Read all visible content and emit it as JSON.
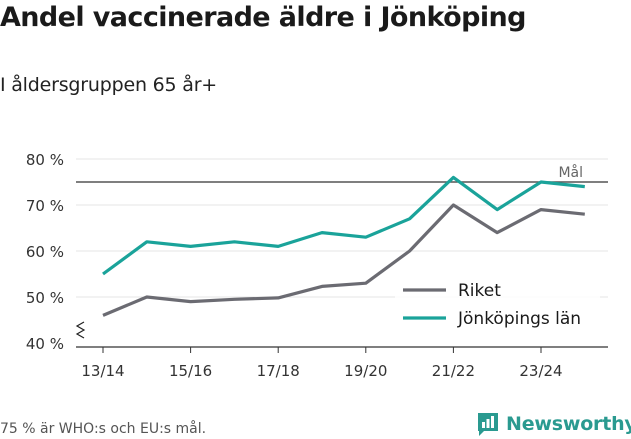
{
  "header": {
    "title": "Andel vaccinerade äldre i Jönköping",
    "subtitle": "I åldersgruppen 65 år+"
  },
  "footer": {
    "note": "75 % är WHO:s och EU:s mål.",
    "brand": "Newsworthy",
    "brand_icon": "newsworthy-logo-icon"
  },
  "chart_data": {
    "type": "line",
    "title": "Andel vaccinerade äldre i Jönköping",
    "subtitle": "I åldersgruppen 65 år+",
    "x": [
      "13/14",
      "14/15",
      "15/16",
      "16/17",
      "17/18",
      "18/19",
      "19/20",
      "20/21",
      "21/22",
      "22/23",
      "23/24",
      "24/25"
    ],
    "tick_labels": [
      "13/14",
      "15/16",
      "17/18",
      "19/20",
      "21/22",
      "23/24"
    ],
    "y_ticks": [
      "40 %",
      "50 %",
      "60 %",
      "70 %",
      "80 %"
    ],
    "ylim": [
      40,
      80
    ],
    "ylabel": "",
    "xlabel": "",
    "grid": true,
    "axis_break": true,
    "series": [
      {
        "name": "Riket",
        "color": "#6b6b72",
        "values": [
          46,
          50,
          49,
          49.5,
          49.8,
          52.3,
          53,
          60,
          70,
          64,
          69,
          68
        ]
      },
      {
        "name": "Jönköpings län",
        "color": "#1aa39a",
        "values": [
          55,
          62,
          61,
          62,
          61,
          64,
          63,
          67,
          76,
          69,
          75,
          74
        ]
      }
    ],
    "reference_line": {
      "value": 75,
      "label": "Mål",
      "color": "#555555"
    },
    "legend_position": "lower-right"
  }
}
